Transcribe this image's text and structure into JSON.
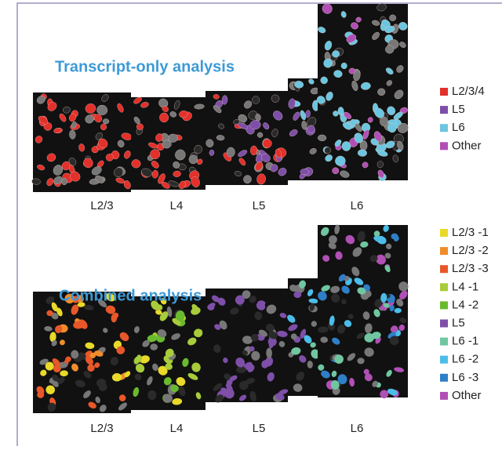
{
  "panels": [
    {
      "title": "Transcript-only analysis",
      "layers": [
        "L2/3",
        "L4",
        "L5",
        "L6"
      ],
      "legend": [
        {
          "label": "L2/3/4",
          "color": "#e2302b"
        },
        {
          "label": "L5",
          "color": "#7e4fa8"
        },
        {
          "label": "L6",
          "color": "#6cc6e0"
        },
        {
          "label": "Other",
          "color": "#b050b5"
        }
      ]
    },
    {
      "title": "Combined analysis",
      "layers": [
        "L2/3",
        "L4",
        "L5",
        "L6"
      ],
      "legend": [
        {
          "label": "L2/3 -1",
          "color": "#e8d92a"
        },
        {
          "label": "L2/3 -2",
          "color": "#f08c2a"
        },
        {
          "label": "L2/3 -3",
          "color": "#e8572a"
        },
        {
          "label": "L4 -1",
          "color": "#a8cc3a"
        },
        {
          "label": "L4 -2",
          "color": "#6aba2e"
        },
        {
          "label": "L5",
          "color": "#7e4fa8"
        },
        {
          "label": "L6 -1",
          "color": "#70c6a0"
        },
        {
          "label": "L6 -2",
          "color": "#4cbde8"
        },
        {
          "label": "L6 -3",
          "color": "#2f7fc8"
        },
        {
          "label": "Other",
          "color": "#b050b5"
        }
      ]
    }
  ]
}
